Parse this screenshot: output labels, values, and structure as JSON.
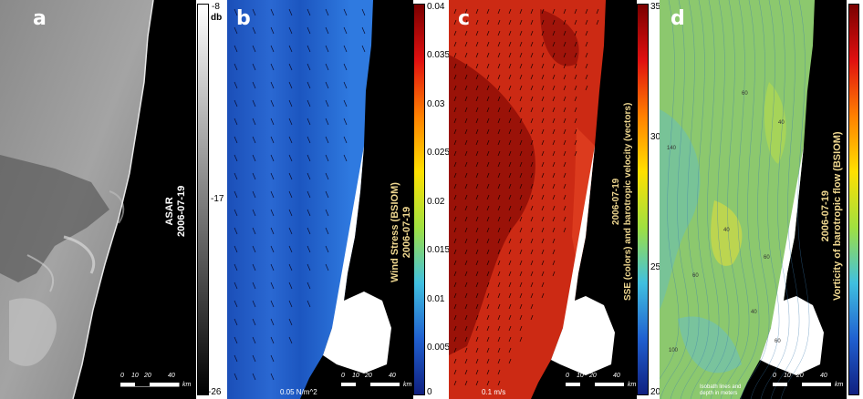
{
  "panel_a": {
    "letter": "a",
    "title_line1": "ASAR",
    "title_line2": "2006-07-19",
    "colorbar_ticks": [
      "-8",
      "db",
      "-17",
      "-26"
    ]
  },
  "panel_b": {
    "letter": "b",
    "title_line1": "Wind Stress (BSIOM)",
    "title_line2": "2006-07-19",
    "colorbar_ticks": [
      "0.04",
      "0.035",
      "0.03",
      "0.025",
      "0.02",
      "0.015",
      "0.01",
      "0.005",
      "0"
    ],
    "vector_scale_label": "0.05 N/m^2"
  },
  "panel_c": {
    "letter": "c",
    "title_line1": "2006-07-19",
    "title_line2": "SSE (colors) and barotropic velocity (vectors)",
    "colorbar_ticks": [
      "35",
      "30",
      "25",
      "20"
    ],
    "vector_scale_label": "0.1 m/s"
  },
  "panel_d": {
    "letter": "d",
    "title_line1": "2006-07-19",
    "title_line2": "Vorticity of barotropic flow (BSIOM)",
    "legend_line1": "Isobath lines and",
    "legend_line2": "depth in meters",
    "isobath_labels": [
      "140",
      "60",
      "40",
      "40",
      "60",
      "60",
      "40",
      "60",
      "100"
    ]
  },
  "scalebar": {
    "ticks": [
      "0",
      "10",
      "20",
      "40"
    ],
    "unit": "km"
  },
  "colors": {
    "sar_dark": "#1a1a1a",
    "wind_blue": "#1f5fc6",
    "sse_red": "#c81e10",
    "vort_green": "#8fc870"
  }
}
